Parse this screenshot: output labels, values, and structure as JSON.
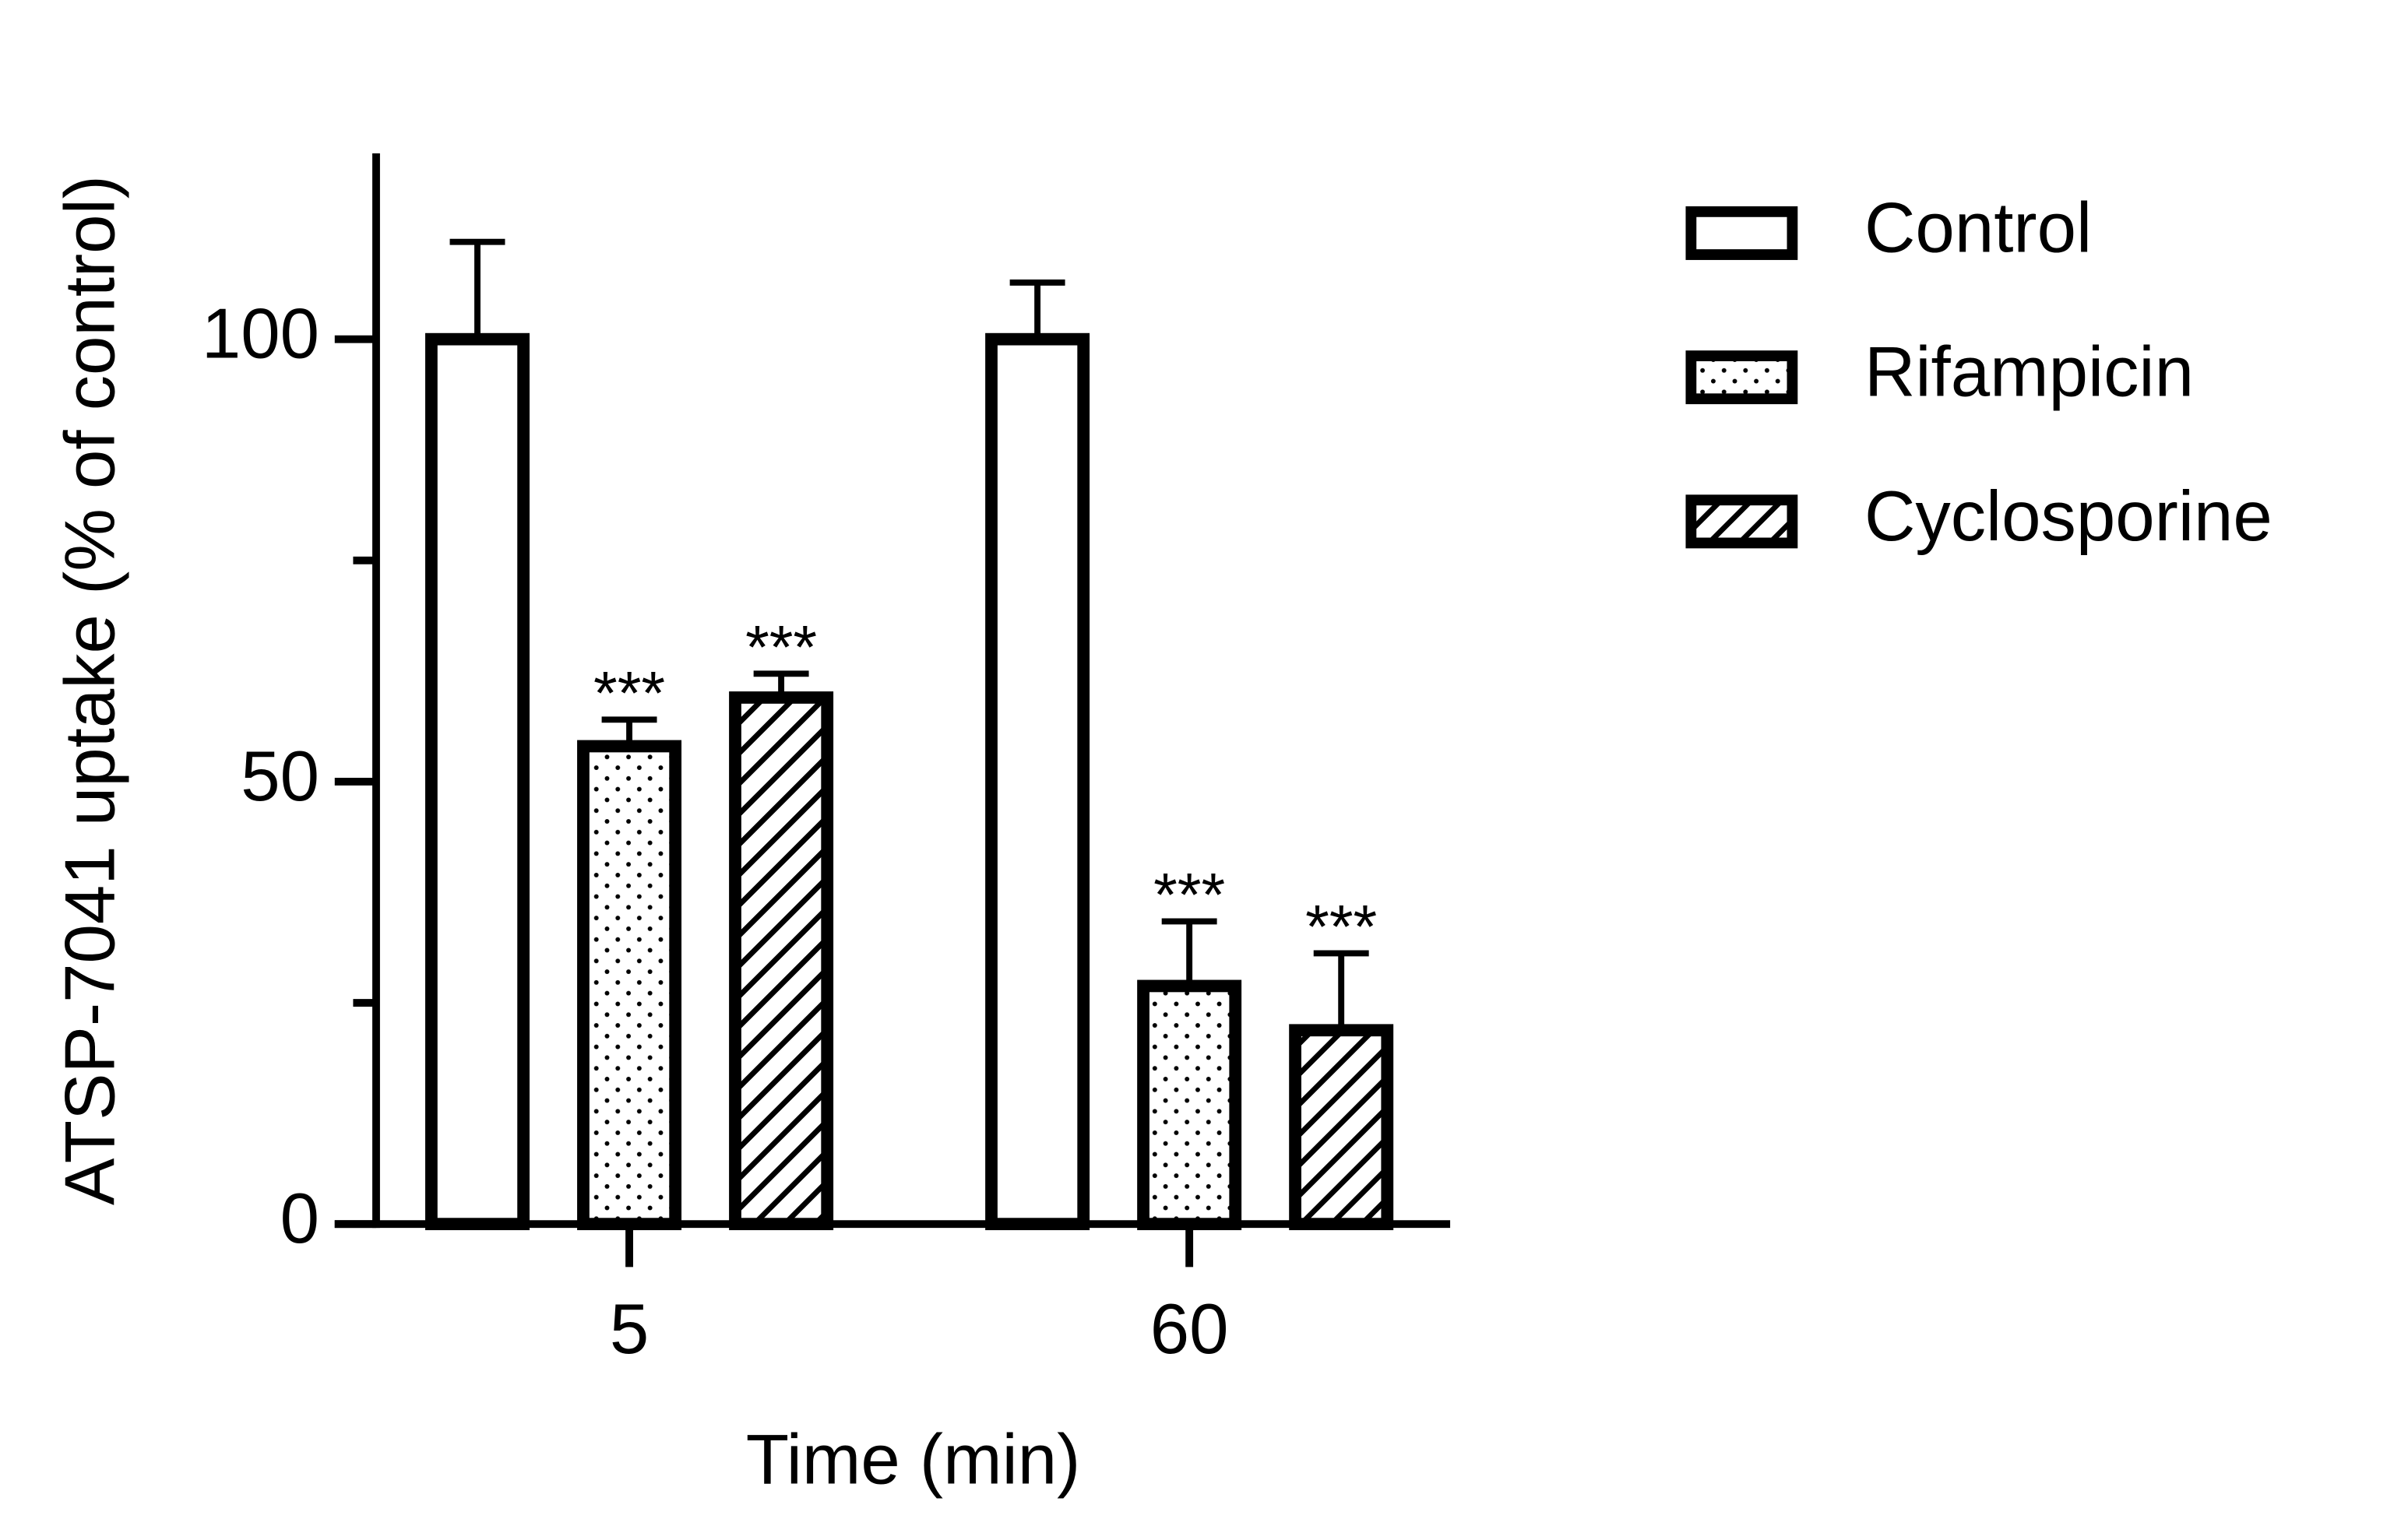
{
  "chart_data": {
    "type": "bar",
    "x_label": "Time (min)",
    "y_label": "ATSP-7041 uptake (% of control)",
    "categories": [
      "5",
      "60"
    ],
    "series": [
      {
        "name": "Control",
        "color": "#ffffff",
        "pattern": "none",
        "values": [
          100,
          100
        ],
        "errors": [
          11,
          6.4
        ]
      },
      {
        "name": "Rifampicin",
        "color": "#ffffff",
        "pattern": "dots",
        "values": [
          54,
          26.9
        ],
        "errors": [
          3,
          7.3
        ],
        "significance": [
          "***",
          "***"
        ]
      },
      {
        "name": "Cyclosporine",
        "color": "#ffffff",
        "pattern": "hatch",
        "values": [
          59.5,
          21.9
        ],
        "errors": [
          2.7,
          8.7
        ],
        "significance": [
          "***",
          "***"
        ]
      }
    ],
    "ylim": [
      0,
      121
    ],
    "yticks": [
      0,
      50,
      100
    ],
    "minor_yticks": [
      25,
      75
    ],
    "legend": "right"
  }
}
